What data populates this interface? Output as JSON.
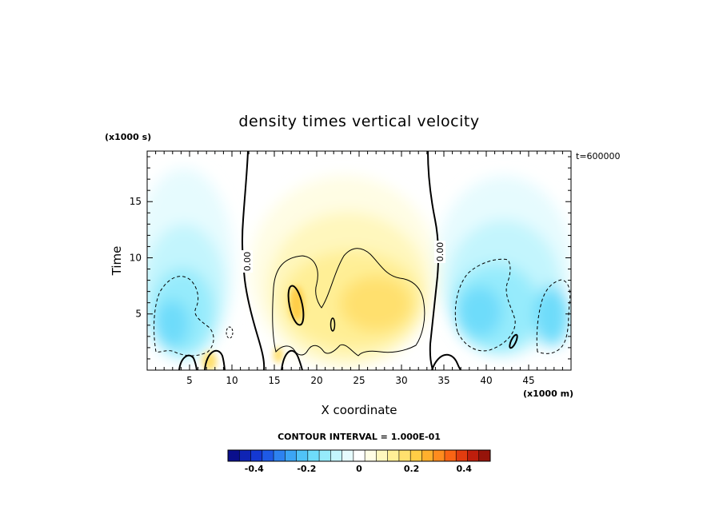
{
  "chart_data": {
    "type": "heatmap",
    "title": "density times vertical velocity",
    "xlabel": "X coordinate",
    "ylabel": "Time",
    "x_units": "(x1000 m)",
    "y_units": "(x1000 s)",
    "time_stamp": "t=600000",
    "xlim": [
      0,
      50
    ],
    "ylim": [
      0,
      19.5
    ],
    "x_ticks": [
      5,
      10,
      15,
      20,
      25,
      30,
      35,
      40,
      45
    ],
    "y_ticks": [
      5,
      10,
      15
    ],
    "zero_contour_label": "0.00",
    "zero_contour_x": [
      12.5,
      33.5
    ],
    "contour_interval": "CONTOUR INTERVAL = 1.000E-01",
    "colorbar": {
      "ticks": [
        "-0.4",
        "-0.2",
        "0",
        "0.2",
        "0.4"
      ],
      "range": [
        -0.5,
        0.5
      ],
      "colors": [
        "#0a0f8c",
        "#0f24b4",
        "#1438d2",
        "#1e5ae6",
        "#2d82f0",
        "#3ca5f5",
        "#50c3f8",
        "#6edcfa",
        "#96ebfc",
        "#c3f5fd",
        "#e6fbfe",
        "#ffffff",
        "#fffde4",
        "#fff7bd",
        "#ffef96",
        "#ffe06e",
        "#ffcd46",
        "#ffb02d",
        "#ff8c1e",
        "#fa6414",
        "#e13c0f",
        "#be1e0c",
        "#96140a"
      ]
    },
    "grid": false
  }
}
